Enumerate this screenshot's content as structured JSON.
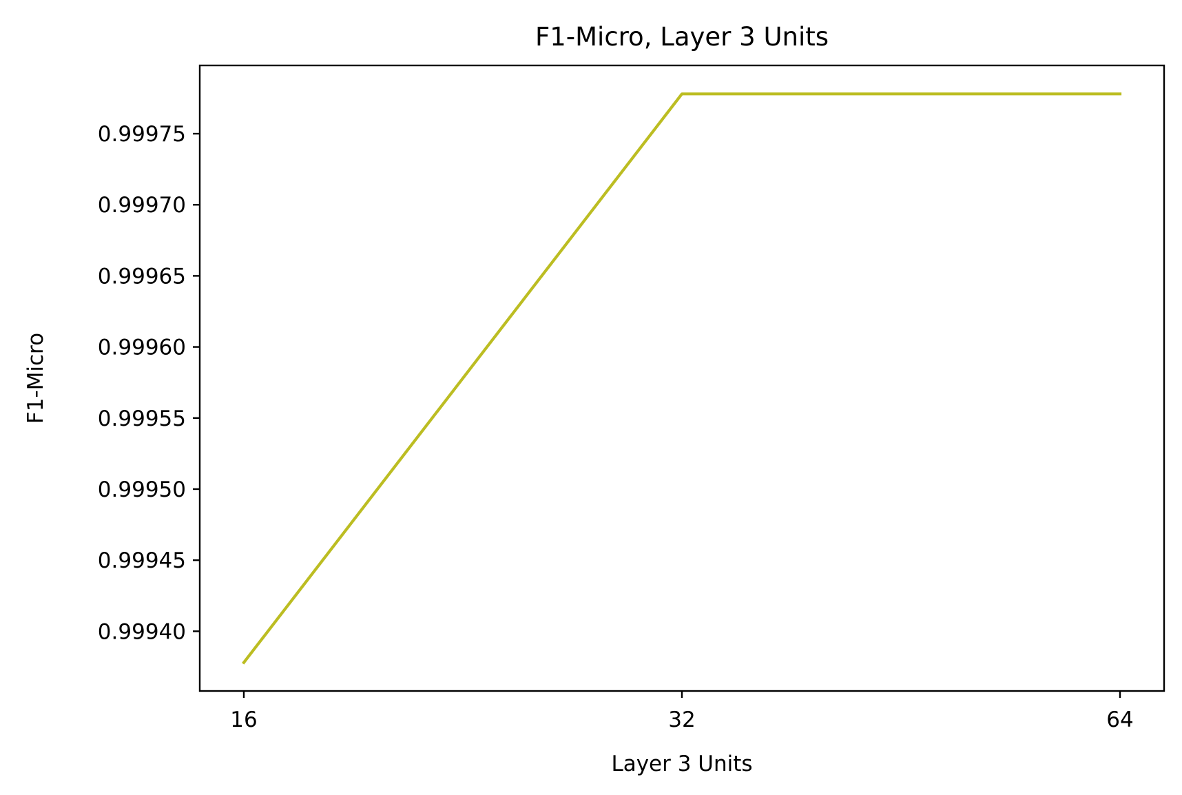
{
  "chart_data": {
    "type": "line",
    "title": "F1-Micro, Layer 3 Units",
    "xlabel": "Layer 3 Units",
    "ylabel": "F1-Micro",
    "x_scale": "categorical",
    "categories": [
      "16",
      "32",
      "64"
    ],
    "series": [
      {
        "color": "#bcbd22",
        "values": [
          0.999378,
          0.999778,
          0.999778
        ]
      }
    ],
    "yticks": [
      0.9994,
      0.99945,
      0.9995,
      0.99955,
      0.9996,
      0.99965,
      0.9997,
      0.99975
    ],
    "ytick_labels": [
      "0.99940",
      "0.99945",
      "0.99950",
      "0.99955",
      "0.99960",
      "0.99965",
      "0.99970",
      "0.99975"
    ],
    "ylim": [
      0.999358,
      0.999798
    ],
    "grid": false,
    "legend": "none"
  }
}
